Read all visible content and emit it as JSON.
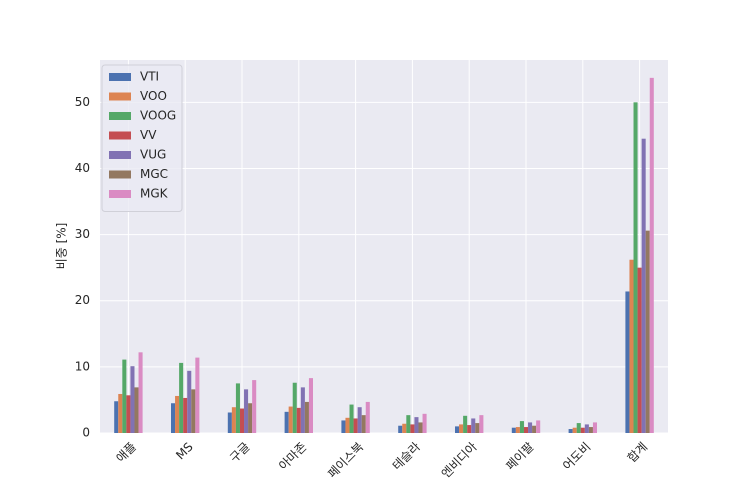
{
  "chart_data": {
    "type": "bar",
    "ylabel": "비중 [%]",
    "categories": [
      "애플",
      "MS",
      "구글",
      "아마존",
      "페이스북",
      "테슬라",
      "엔비디아",
      "페이팔",
      "어도비",
      "합계"
    ],
    "series": [
      {
        "name": "VTI",
        "color": "#4c72b0",
        "values": [
          4.8,
          4.5,
          3.1,
          3.2,
          1.9,
          1.1,
          1.0,
          0.8,
          0.6,
          21.4
        ]
      },
      {
        "name": "VOO",
        "color": "#dd8452",
        "values": [
          5.9,
          5.6,
          3.9,
          4.0,
          2.3,
          1.4,
          1.3,
          0.9,
          0.8,
          26.2
        ]
      },
      {
        "name": "VOOG",
        "color": "#55a868",
        "values": [
          11.1,
          10.6,
          7.5,
          7.6,
          4.3,
          2.7,
          2.6,
          1.8,
          1.5,
          50.0
        ]
      },
      {
        "name": "VV",
        "color": "#c44e52",
        "values": [
          5.7,
          5.3,
          3.7,
          3.8,
          2.2,
          1.3,
          1.2,
          0.9,
          0.8,
          25.0
        ]
      },
      {
        "name": "VUG",
        "color": "#8172b3",
        "values": [
          10.1,
          9.4,
          6.6,
          6.9,
          3.9,
          2.4,
          2.2,
          1.6,
          1.3,
          44.5
        ]
      },
      {
        "name": "MGC",
        "color": "#937860",
        "values": [
          6.9,
          6.6,
          4.5,
          4.7,
          2.7,
          1.6,
          1.5,
          1.1,
          0.9,
          30.6
        ]
      },
      {
        "name": "MGK",
        "color": "#da8bc3",
        "values": [
          12.2,
          11.4,
          8.0,
          8.3,
          4.7,
          2.9,
          2.7,
          1.9,
          1.6,
          53.7
        ]
      }
    ],
    "ylim": [
      0,
      56.4
    ],
    "yticks": [
      0,
      10,
      20,
      30,
      40,
      50
    ],
    "grid": true,
    "legend": "upper left"
  }
}
